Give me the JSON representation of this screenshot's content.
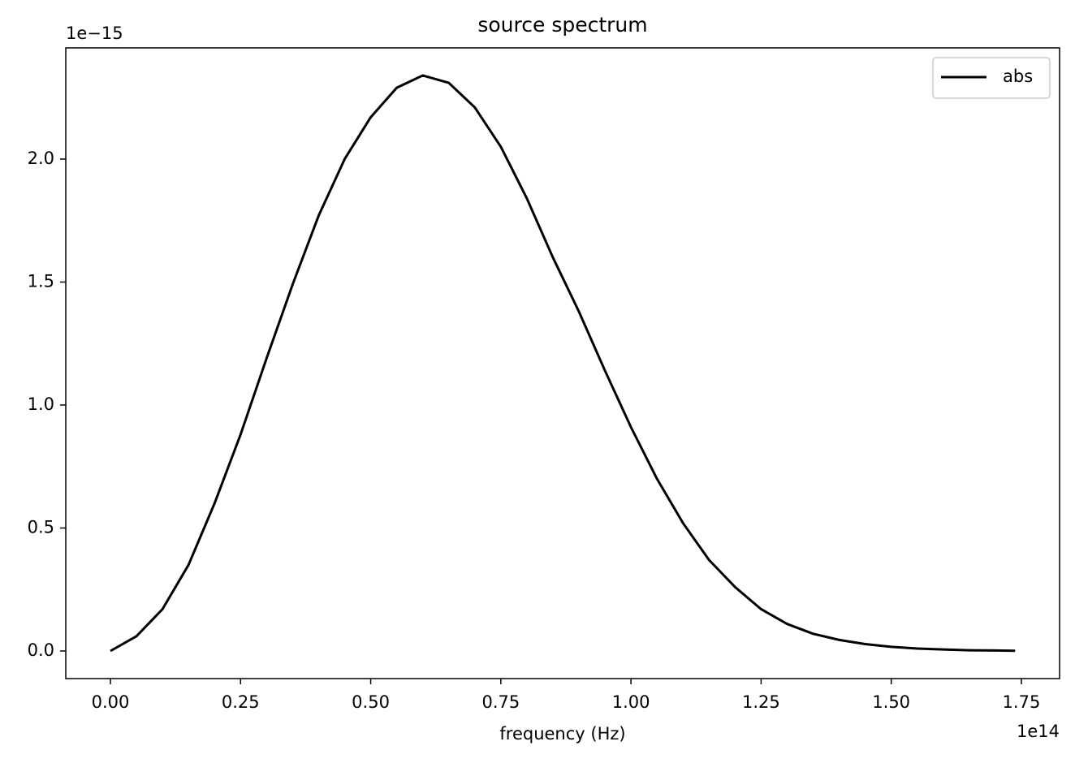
{
  "chart_data": {
    "type": "line",
    "title": "source spectrum",
    "xlabel": "frequency (Hz)",
    "x_offset_label": "1e14",
    "y_offset_label": "1e−15",
    "x": [
      0,
      0.05,
      0.1,
      0.15,
      0.2,
      0.25,
      0.3,
      0.35,
      0.4,
      0.45,
      0.5,
      0.55,
      0.6,
      0.65,
      0.7,
      0.75,
      0.8,
      0.85,
      0.9,
      0.95,
      1.0,
      1.05,
      1.1,
      1.15,
      1.2,
      1.25,
      1.3,
      1.35,
      1.4,
      1.45,
      1.5,
      1.55,
      1.6,
      1.65,
      1.7,
      1.738
    ],
    "series": [
      {
        "name": "abs",
        "color": "#000000",
        "values": [
          0,
          0.06,
          0.17,
          0.35,
          0.6,
          0.88,
          1.19,
          1.49,
          1.77,
          2.0,
          2.17,
          2.29,
          2.34,
          2.31,
          2.21,
          2.05,
          1.84,
          1.6,
          1.38,
          1.14,
          0.91,
          0.7,
          0.52,
          0.37,
          0.26,
          0.17,
          0.11,
          0.07,
          0.045,
          0.028,
          0.017,
          0.01,
          0.006,
          0.003,
          0.002,
          0.001
        ]
      }
    ],
    "xlim": [
      -0.0858,
      1.8234
    ],
    "ylim": [
      -0.1122,
      2.452
    ],
    "xticks": [
      {
        "value": 0,
        "label": "0.00"
      },
      0.25,
      {
        "value": 0.5,
        "label": "0.50"
      },
      0.75,
      {
        "value": 1,
        "label": "1.00"
      },
      1.25,
      {
        "value": 1.5,
        "label": "1.50"
      },
      1.75
    ],
    "yticks": [
      {
        "value": 0,
        "label": "0.0"
      },
      0.5,
      {
        "value": 1,
        "label": "1.0"
      },
      1.5,
      {
        "value": 2,
        "label": "2.0"
      }
    ],
    "grid": false,
    "legend": "upper right"
  }
}
